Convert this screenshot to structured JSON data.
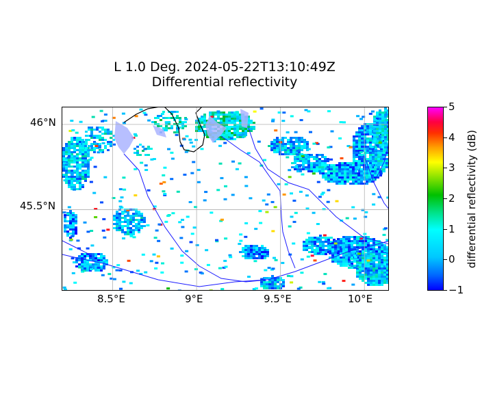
{
  "figure": {
    "title_line1": "L 1.0 Deg. 2024-05-22T13:10:49Z",
    "title_line2": "Differential reflectivity"
  },
  "map": {
    "x_ticks": [
      "8.5°E",
      "9°E",
      "9.5°E",
      "10°E"
    ],
    "y_ticks": [
      "46°N",
      "45.5°N"
    ],
    "lon_range": [
      8.2,
      10.15
    ],
    "lat_range": [
      45.02,
      46.1
    ],
    "grid": true,
    "layers": [
      "radar-echoes",
      "rivers",
      "lakes",
      "borders"
    ],
    "colors": {
      "river": "#1a1aff",
      "lake": "#aab4ff",
      "border": "#000000"
    }
  },
  "colorbar": {
    "label": "differential reflectivity (dB)",
    "ticks": [
      "5",
      "4",
      "3",
      "2",
      "1",
      "0",
      "−1"
    ],
    "range": [
      -1,
      5
    ]
  }
}
